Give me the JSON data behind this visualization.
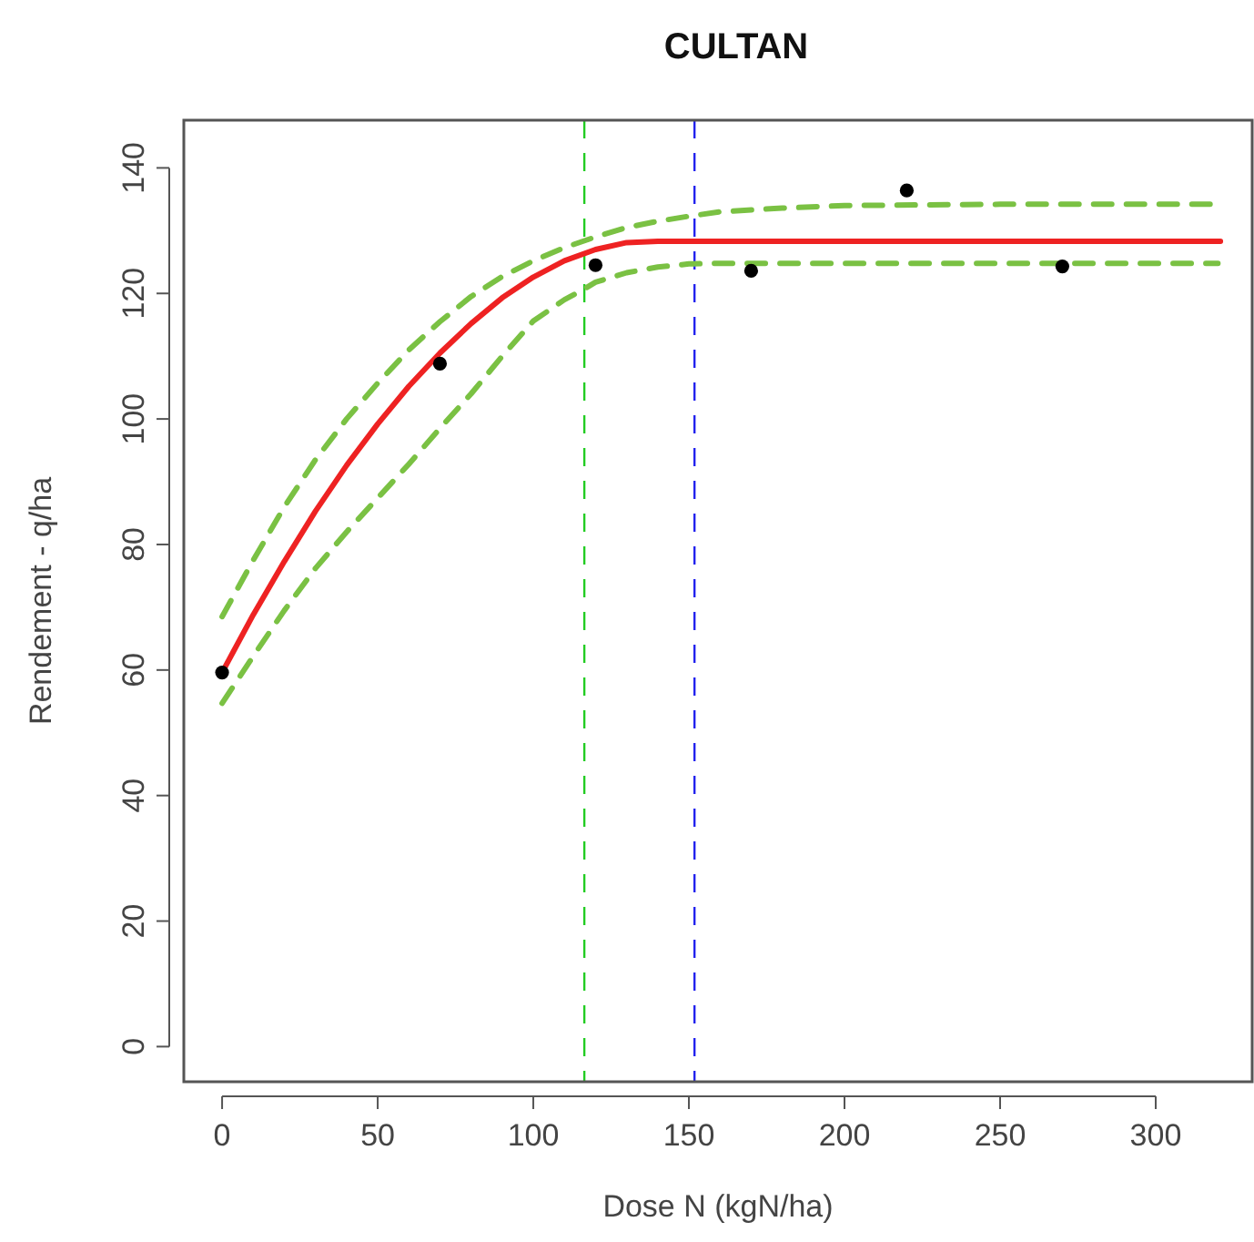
{
  "chart_data": {
    "type": "line",
    "title": "CULTAN",
    "xlabel": "Dose N (kgN/ha)",
    "ylabel": "Rendement - q/ha",
    "xlim": [
      -12.3,
      331
    ],
    "ylim": [
      -5.6,
      147.6
    ],
    "xticks": [
      0,
      50,
      100,
      150,
      200,
      250,
      300
    ],
    "yticks": [
      0,
      20,
      40,
      60,
      80,
      100,
      120,
      140
    ],
    "grid": false,
    "series": [
      {
        "color": "#7ac143",
        "line_style": "dashed",
        "x": [
          0,
          10,
          20,
          30,
          40,
          50,
          60,
          70,
          80,
          90,
          100,
          110,
          120,
          130,
          140,
          150,
          160,
          180,
          200,
          250,
          320
        ],
        "values": [
          68.5,
          77.5,
          86,
          93.5,
          100,
          105.7,
          111,
          115.5,
          119.5,
          122.7,
          125.2,
          127.3,
          129,
          130.5,
          131.5,
          132.3,
          133,
          133.6,
          134,
          134.2,
          134.2
        ]
      },
      {
        "color": "#7ac143",
        "line_style": "dashed",
        "x": [
          0,
          10,
          20,
          30,
          40,
          50,
          60,
          70,
          80,
          90,
          100,
          110,
          116,
          120,
          130,
          140,
          150,
          160,
          200,
          320
        ],
        "values": [
          54.7,
          62.2,
          69.5,
          76.2,
          82,
          87.4,
          92.8,
          98.5,
          104,
          110,
          115.6,
          119,
          120.6,
          121.8,
          123.3,
          124.2,
          124.7,
          124.8,
          124.8,
          124.8
        ]
      },
      {
        "color": "#ee2222",
        "line_style": "solid",
        "x": [
          0,
          10,
          20,
          30,
          40,
          50,
          60,
          70,
          80,
          90,
          100,
          110,
          120,
          130,
          140,
          146,
          200,
          320.8
        ],
        "values": [
          59.6,
          68.8,
          77.3,
          85.3,
          92.6,
          99.2,
          105.2,
          110.5,
          115.2,
          119.3,
          122.6,
          125.2,
          127,
          128.1,
          128.3,
          128.3,
          128.3,
          128.3
        ]
      },
      {
        "type": "scatter",
        "color": "#000000",
        "marker": "circle",
        "x": [
          0,
          70,
          120,
          170,
          220,
          270
        ],
        "values": [
          59.6,
          108.8,
          124.5,
          123.6,
          136.4,
          124.3
        ]
      }
    ],
    "ref_lines": [
      {
        "axis": "x",
        "value": 116.4,
        "color": "#22cc22",
        "line_style": "dashed"
      },
      {
        "axis": "x",
        "value": 151.8,
        "color": "#2222ee",
        "line_style": "dashed"
      }
    ]
  }
}
